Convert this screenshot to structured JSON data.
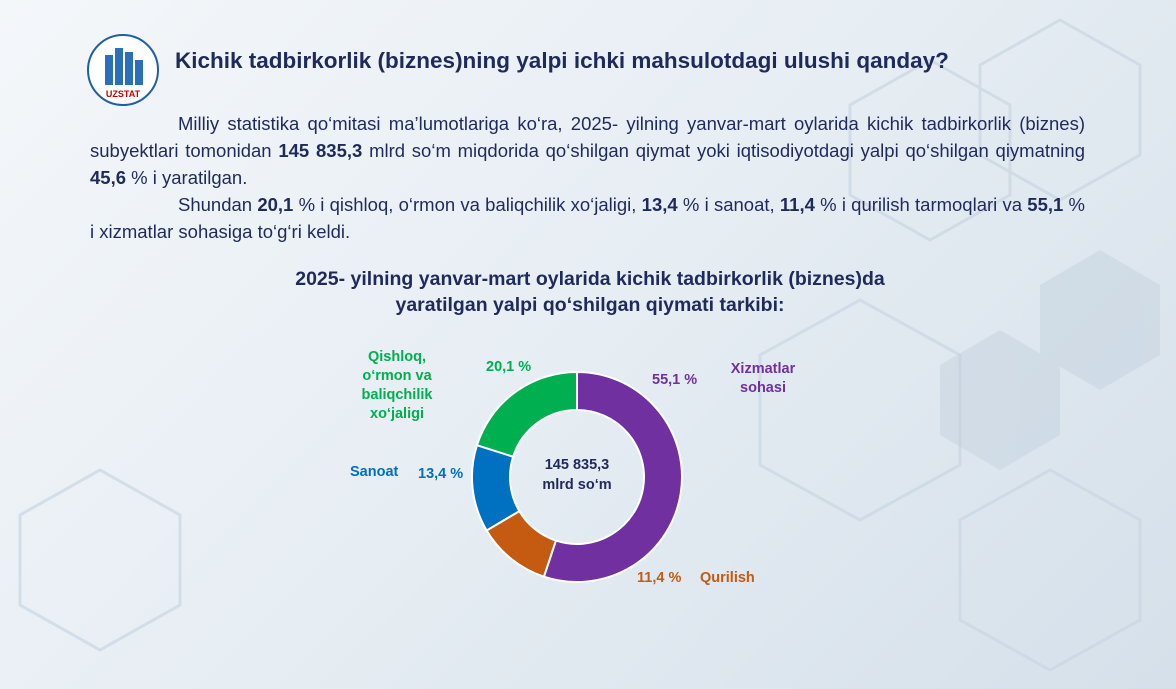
{
  "header": {
    "logo": "UZSTAT",
    "title": "Kichik tadbirkorlik (biznes)ning yalpi ichki mahsulotdagi ulushi qanday?"
  },
  "paragraphs": [
    [
      {
        "text": "Milliy statistika qo‘mitasi ma’lumotlariga ko‘ra, 2025- yilning yanvar-mart oylarida kichik tadbirkorlik (biznes) subyektlari tomonidan ",
        "bold": false
      },
      {
        "text": "145 835,3",
        "bold": true
      },
      {
        "text": " mlrd  so‘m miqdorida qo‘shilgan qiymat yoki iqtisodiyotdagi yalpi qo‘shilgan qiymatning ",
        "bold": false
      },
      {
        "text": "45,6",
        "bold": true
      },
      {
        "text": " % i yaratilgan.",
        "bold": false
      }
    ],
    [
      {
        "text": "Shundan ",
        "bold": false
      },
      {
        "text": "20,1",
        "bold": true
      },
      {
        "text": " % i qishloq, o‘rmon va baliqchilik xo‘jaligi, ",
        "bold": false
      },
      {
        "text": "13,4",
        "bold": true
      },
      {
        "text": " % i sanoat, ",
        "bold": false
      },
      {
        "text": "11,4",
        "bold": true
      },
      {
        "text": " % i qurilish tarmoqlari va ",
        "bold": false
      },
      {
        "text": "55,1",
        "bold": true
      },
      {
        "text": " % i xizmatlar sohasiga to‘g‘ri keldi.",
        "bold": false
      }
    ]
  ],
  "chart_data": {
    "type": "donut",
    "title": [
      "2025- yilning yanvar-mart oylarida kichik tadbirkorlik (biznes)da",
      "yaratilgan yalpi qo‘shilgan qiymati tarkibi:"
    ],
    "center_label": [
      "145 835,3",
      "mlrd so‘m"
    ],
    "categories": [
      "Xizmatlar sohasi",
      "Qurilish",
      "Sanoat",
      "Qishloq, o‘rmon va baliqchilik xo‘jaligi"
    ],
    "values": [
      55.1,
      11.4,
      13.4,
      20.1
    ],
    "value_labels": [
      "55,1 %",
      "11,4 %",
      "13,4 %",
      "20,1 %"
    ],
    "colors": [
      "#7030a0",
      "#c55a11",
      "#0070c0",
      "#00b050"
    ]
  }
}
